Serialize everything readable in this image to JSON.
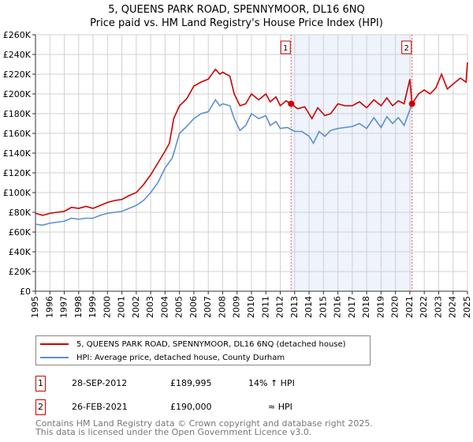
{
  "chart_data": {
    "type": "line",
    "title": "5, QUEENS PARK ROAD, SPENNYMOOR, DL16 6NQ",
    "subtitle": "Price paid vs. HM Land Registry's House Price Index (HPI)",
    "xlim": [
      1995,
      2025
    ],
    "ylim": [
      0,
      260000
    ],
    "x_ticks": [
      "1995",
      "1996",
      "1997",
      "1998",
      "1999",
      "2000",
      "2001",
      "2002",
      "2003",
      "2004",
      "2005",
      "2006",
      "2007",
      "2008",
      "2009",
      "2010",
      "2011",
      "2012",
      "2013",
      "2014",
      "2015",
      "2016",
      "2017",
      "2018",
      "2019",
      "2020",
      "2021",
      "2022",
      "2023",
      "2024",
      "2025"
    ],
    "y_ticks": [
      "£0",
      "£20K",
      "£40K",
      "£60K",
      "£80K",
      "£100K",
      "£120K",
      "£140K",
      "£160K",
      "£180K",
      "£200K",
      "£220K",
      "£240K",
      "£260K"
    ],
    "grid": true,
    "series": [
      {
        "name": "5, QUEENS PARK ROAD, SPENNYMOOR, DL16 6NQ (detached house)",
        "color": "#cc0000",
        "x": [
          1995,
          1995.5,
          1996,
          1996.5,
          1997,
          1997.5,
          1998,
          1998.5,
          1999,
          1999.5,
          2000,
          2000.5,
          2001,
          2001.5,
          2002,
          2002.5,
          2003,
          2003.5,
          2004,
          2004.3,
          2004.6,
          2005,
          2005.5,
          2006,
          2006.5,
          2007,
          2007.5,
          2007.8,
          2008,
          2008.5,
          2008.8,
          2009.2,
          2009.6,
          2010,
          2010.5,
          2011,
          2011.3,
          2011.7,
          2012,
          2012.4,
          2012.75,
          2013.2,
          2013.7,
          2014.2,
          2014.6,
          2015.1,
          2015.5,
          2016,
          2016.5,
          2017,
          2017.5,
          2018,
          2018.5,
          2019,
          2019.4,
          2019.8,
          2020.2,
          2020.6,
          2021.0,
          2021.15,
          2021.6,
          2022,
          2022.4,
          2022.8,
          2023.2,
          2023.6,
          2024,
          2024.5,
          2024.9,
          2025
        ],
        "y": [
          79000,
          77000,
          79000,
          80000,
          81000,
          85000,
          84000,
          86000,
          84000,
          87000,
          90000,
          92000,
          93000,
          97000,
          100000,
          108000,
          118000,
          130000,
          142000,
          150000,
          175000,
          188000,
          195000,
          208000,
          212000,
          215000,
          225000,
          220000,
          222000,
          218000,
          200000,
          188000,
          190000,
          200000,
          194000,
          200000,
          192000,
          197000,
          188000,
          193000,
          189995,
          185000,
          187000,
          175000,
          186000,
          178000,
          180000,
          190000,
          188000,
          188000,
          192000,
          186000,
          194000,
          188000,
          196000,
          188000,
          193000,
          190000,
          215000,
          190000,
          200000,
          204000,
          200000,
          206000,
          220000,
          205000,
          210000,
          216000,
          212000,
          232000
        ]
      },
      {
        "name": "HPI: Average price, detached house, County Durham",
        "color": "#5b8fd0",
        "x": [
          1995,
          1995.5,
          1996,
          1996.5,
          1997,
          1997.5,
          1998,
          1998.5,
          1999,
          1999.5,
          2000,
          2000.5,
          2001,
          2001.5,
          2002,
          2002.5,
          2003,
          2003.5,
          2004,
          2004.5,
          2005,
          2005.5,
          2006,
          2006.5,
          2007,
          2007.5,
          2007.8,
          2008,
          2008.5,
          2008.8,
          2009.2,
          2009.6,
          2010,
          2010.5,
          2011,
          2011.3,
          2011.7,
          2012,
          2012.5,
          2013,
          2013.5,
          2014,
          2014.3,
          2014.7,
          2015.1,
          2015.5,
          2016,
          2016.5,
          2017,
          2017.5,
          2018,
          2018.5,
          2019,
          2019.4,
          2019.8,
          2020.2,
          2020.6,
          2021.15
        ],
        "y": [
          68000,
          67000,
          69000,
          70000,
          71000,
          74000,
          73000,
          74000,
          74000,
          77000,
          79000,
          80000,
          81000,
          84000,
          87000,
          92000,
          100000,
          110000,
          125000,
          135000,
          160000,
          167000,
          175000,
          180000,
          182000,
          194000,
          188000,
          190000,
          188000,
          175000,
          163000,
          168000,
          180000,
          175000,
          178000,
          168000,
          172000,
          165000,
          166000,
          162000,
          162000,
          157000,
          150000,
          162000,
          157000,
          163000,
          165000,
          166000,
          167000,
          170000,
          165000,
          176000,
          166000,
          177000,
          170000,
          176000,
          168000,
          190000
        ]
      }
    ],
    "annotations": [
      {
        "label": "1",
        "x": 2012.75,
        "y": 189995
      },
      {
        "label": "2",
        "x": 2021.15,
        "y": 190000
      }
    ],
    "shaded_range": [
      2012.75,
      2021.15
    ]
  },
  "legend": {
    "items": [
      "5, QUEENS PARK ROAD, SPENNYMOOR, DL16 6NQ (detached house)",
      "HPI: Average price, detached house, County Durham"
    ]
  },
  "transactions": [
    {
      "num": "1",
      "date": "28-SEP-2012",
      "price": "£189,995",
      "hpi": "14% ↑ HPI"
    },
    {
      "num": "2",
      "date": "26-FEB-2021",
      "price": "£190,000",
      "hpi": "≈ HPI"
    }
  ],
  "footer": [
    "Contains HM Land Registry data © Crown copyright and database right 2025.",
    "This data is licensed under the Open Government Licence v3.0."
  ]
}
